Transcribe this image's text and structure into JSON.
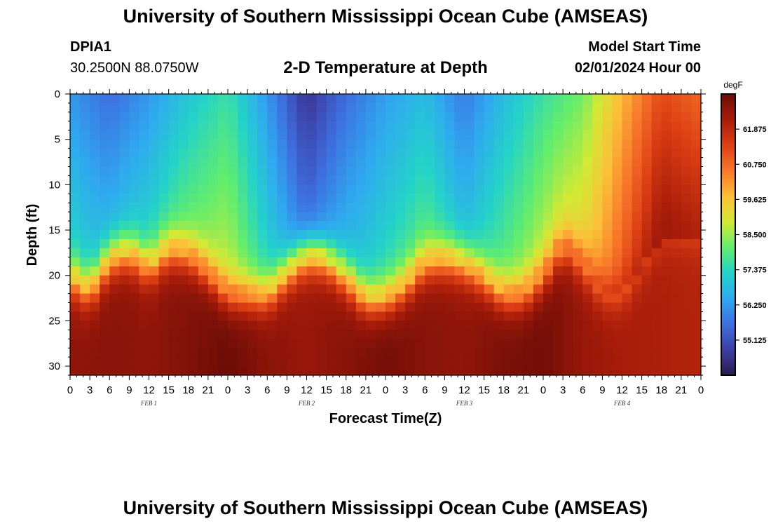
{
  "header": {
    "title": "University of Southern Mississippi Ocean Cube (AMSEAS)",
    "station_id": "DPIA1",
    "coordinates": "30.2500N  88.0750W",
    "subtitle": "2-D Temperature at Depth",
    "model_start_label": "Model Start Time",
    "model_start_value": "02/01/2024 Hour 00"
  },
  "footer": {
    "title": "University of Southern Mississippi Ocean Cube (AMSEAS)"
  },
  "chart_data": {
    "type": "heatmap",
    "title": "2-D Temperature at Depth",
    "xlabel": "Forecast Time(Z)",
    "ylabel": "Depth (ft)",
    "x_hours_range": [
      0,
      96
    ],
    "x_tick_step_hours": 3,
    "x_tick_labels": [
      "0",
      "3",
      "6",
      "9",
      "12",
      "15",
      "18",
      "21",
      "0",
      "3",
      "6",
      "9",
      "12",
      "15",
      "18",
      "21",
      "0",
      "3",
      "6",
      "9",
      "12",
      "15",
      "18",
      "21",
      "0",
      "3",
      "6",
      "9",
      "12",
      "15",
      "18",
      "21",
      "0"
    ],
    "day_labels": [
      {
        "label": "FEB 1",
        "hour": 12
      },
      {
        "label": "FEB 2",
        "hour": 36
      },
      {
        "label": "FEB 3",
        "hour": 60
      },
      {
        "label": "FEB 4",
        "hour": 84
      }
    ],
    "y_range": [
      0,
      31
    ],
    "y_ticks": [
      0,
      5,
      10,
      15,
      20,
      25,
      30
    ],
    "colorbar": {
      "unit": "degF",
      "range": [
        54.0,
        63.0
      ],
      "tick_values": [
        61.875,
        60.75,
        59.625,
        58.5,
        57.375,
        56.25,
        55.125
      ],
      "tick_labels": [
        "61.875",
        "60.750",
        "59.625",
        "58.500",
        "57.375",
        "56.250",
        "55.125"
      ],
      "colors": [
        "#2b1a4f",
        "#3c3fa3",
        "#3e6fe0",
        "#2fa9f0",
        "#23d3c8",
        "#62ed6c",
        "#d3e934",
        "#fcbf38",
        "#f8772a",
        "#dd3f14",
        "#a81c0a",
        "#6b0c07"
      ]
    },
    "surface_temp_by_hour": [
      [
        0,
        56.2
      ],
      [
        6,
        55.6
      ],
      [
        12,
        56.2
      ],
      [
        18,
        57.0
      ],
      [
        24,
        57.6
      ],
      [
        30,
        56.2
      ],
      [
        36,
        54.6
      ],
      [
        42,
        55.6
      ],
      [
        48,
        56.3
      ],
      [
        54,
        56.8
      ],
      [
        60,
        55.8
      ],
      [
        66,
        56.8
      ],
      [
        72,
        57.6
      ],
      [
        78,
        58.2
      ],
      [
        84,
        59.8
      ],
      [
        90,
        61.2
      ],
      [
        96,
        60.8
      ]
    ],
    "bottom_temp_by_hour": [
      [
        0,
        62.5
      ],
      [
        6,
        62.6
      ],
      [
        12,
        62.5
      ],
      [
        18,
        62.7
      ],
      [
        24,
        63.0
      ],
      [
        30,
        62.6
      ],
      [
        36,
        62.4
      ],
      [
        42,
        62.6
      ],
      [
        48,
        62.9
      ],
      [
        54,
        62.6
      ],
      [
        60,
        62.5
      ],
      [
        66,
        62.8
      ],
      [
        72,
        62.9
      ],
      [
        78,
        62.4
      ],
      [
        84,
        62.2
      ],
      [
        90,
        62.1
      ],
      [
        96,
        62.0
      ]
    ],
    "thermocline_depth_by_hour": [
      [
        0,
        20.0
      ],
      [
        3,
        21.5
      ],
      [
        6,
        18.0
      ],
      [
        9,
        17.2
      ],
      [
        12,
        19.0
      ],
      [
        15,
        17.0
      ],
      [
        18,
        17.5
      ],
      [
        21,
        19.5
      ],
      [
        24,
        22.0
      ],
      [
        27,
        22.0
      ],
      [
        30,
        22.0
      ],
      [
        33,
        19.5
      ],
      [
        36,
        17.5
      ],
      [
        39,
        18.0
      ],
      [
        42,
        20.0
      ],
      [
        45,
        22.5
      ],
      [
        48,
        22.5
      ],
      [
        51,
        21.0
      ],
      [
        54,
        18.5
      ],
      [
        57,
        18.0
      ],
      [
        60,
        18.5
      ],
      [
        63,
        20.0
      ],
      [
        66,
        22.0
      ],
      [
        69,
        22.0
      ],
      [
        72,
        20.0
      ],
      [
        75,
        16.5
      ],
      [
        78,
        18.5
      ],
      [
        81,
        21.5
      ],
      [
        84,
        22.0
      ],
      [
        87,
        19.0
      ],
      [
        90,
        16.0
      ],
      [
        93,
        16.0
      ],
      [
        96,
        16.0
      ]
    ]
  }
}
